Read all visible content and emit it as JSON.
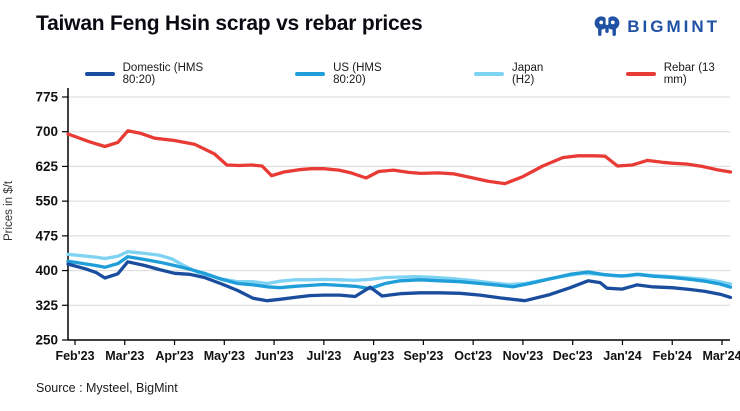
{
  "header": {
    "title": "Taiwan Feng Hsin scrap vs rebar prices",
    "brand": "BIGMINT"
  },
  "source_note": "Source : Mysteel, BigMint",
  "colors": {
    "brand_blue": "#2051a3",
    "axis": "#000000",
    "grid": "#d9d9d9",
    "tick_text": "#111111"
  },
  "chart_data": {
    "type": "line",
    "title": "Taiwan Feng Hsin scrap vs rebar prices",
    "xlabel": "",
    "ylabel": "Prices in $/t",
    "ylim": [
      250,
      775
    ],
    "yticks": [
      250,
      325,
      400,
      475,
      550,
      625,
      700,
      775
    ],
    "grid": "horizontal",
    "legend_position": "top",
    "x_categories": [
      "Feb'23",
      "Mar'23",
      "Apr'23",
      "May'23",
      "Jun'23",
      "Jul'23",
      "Aug'23",
      "Sep'23",
      "Oct'23",
      "Nov'23",
      "Dec'23",
      "Jan'24",
      "Feb'24",
      "Mar'24"
    ],
    "x_unit": "months from Feb'23 (fractional = weekly readings)",
    "series": [
      {
        "name": "Domestic (HMS 80:20)",
        "color": "#1a4d9e",
        "points": [
          [
            -0.14,
            414
          ],
          [
            0.2,
            404
          ],
          [
            0.42,
            396
          ],
          [
            0.6,
            384
          ],
          [
            0.86,
            393
          ],
          [
            1.06,
            419
          ],
          [
            1.4,
            411
          ],
          [
            1.7,
            402
          ],
          [
            2.0,
            394
          ],
          [
            2.3,
            392
          ],
          [
            2.6,
            385
          ],
          [
            2.95,
            371
          ],
          [
            3.27,
            357
          ],
          [
            3.58,
            340
          ],
          [
            3.86,
            335
          ],
          [
            4.12,
            338
          ],
          [
            4.42,
            342
          ],
          [
            4.72,
            346
          ],
          [
            5.0,
            347
          ],
          [
            5.32,
            347
          ],
          [
            5.63,
            344
          ],
          [
            5.93,
            364
          ],
          [
            6.17,
            345
          ],
          [
            6.53,
            350
          ],
          [
            6.93,
            352
          ],
          [
            7.33,
            352
          ],
          [
            7.74,
            351
          ],
          [
            8.14,
            347
          ],
          [
            8.54,
            341
          ],
          [
            9.04,
            335
          ],
          [
            9.54,
            348
          ],
          [
            9.95,
            363
          ],
          [
            10.31,
            378
          ],
          [
            10.55,
            374
          ],
          [
            10.69,
            362
          ],
          [
            10.99,
            360
          ],
          [
            11.29,
            369
          ],
          [
            11.59,
            365
          ],
          [
            12.0,
            363
          ],
          [
            12.36,
            359
          ],
          [
            12.66,
            355
          ],
          [
            12.96,
            349
          ],
          [
            13.17,
            342
          ]
        ]
      },
      {
        "name": "US (HMS 80:20)",
        "color": "#1f9ed9",
        "points": [
          [
            -0.14,
            420
          ],
          [
            0.42,
            411
          ],
          [
            0.6,
            407
          ],
          [
            0.86,
            415
          ],
          [
            1.06,
            430
          ],
          [
            1.4,
            424
          ],
          [
            1.7,
            418
          ],
          [
            2.0,
            411
          ],
          [
            2.3,
            403
          ],
          [
            2.6,
            394
          ],
          [
            2.95,
            381
          ],
          [
            3.27,
            372
          ],
          [
            3.58,
            369
          ],
          [
            3.86,
            365
          ],
          [
            4.12,
            363
          ],
          [
            4.42,
            366
          ],
          [
            4.72,
            368
          ],
          [
            5.0,
            370
          ],
          [
            5.32,
            368
          ],
          [
            5.63,
            366
          ],
          [
            5.93,
            361
          ],
          [
            6.23,
            372
          ],
          [
            6.53,
            378
          ],
          [
            6.93,
            380
          ],
          [
            7.33,
            378
          ],
          [
            7.74,
            376
          ],
          [
            8.14,
            372
          ],
          [
            8.54,
            368
          ],
          [
            8.8,
            365
          ],
          [
            9.14,
            372
          ],
          [
            9.54,
            382
          ],
          [
            9.95,
            392
          ],
          [
            10.31,
            397
          ],
          [
            10.65,
            391
          ],
          [
            10.99,
            388
          ],
          [
            11.29,
            392
          ],
          [
            11.59,
            388
          ],
          [
            12.0,
            385
          ],
          [
            12.36,
            381
          ],
          [
            12.66,
            377
          ],
          [
            12.96,
            371
          ],
          [
            13.17,
            364
          ]
        ]
      },
      {
        "name": "Japan (H2)",
        "color": "#7ed3f2",
        "points": [
          [
            -0.14,
            435
          ],
          [
            0.42,
            429
          ],
          [
            0.6,
            426
          ],
          [
            0.86,
            431
          ],
          [
            1.06,
            441
          ],
          [
            1.4,
            437
          ],
          [
            1.7,
            433
          ],
          [
            1.95,
            425
          ],
          [
            2.2,
            410
          ],
          [
            2.45,
            397
          ],
          [
            2.7,
            389
          ],
          [
            2.95,
            382
          ],
          [
            3.27,
            376
          ],
          [
            3.58,
            376
          ],
          [
            3.86,
            372
          ],
          [
            4.12,
            377
          ],
          [
            4.42,
            380
          ],
          [
            4.72,
            380
          ],
          [
            5.0,
            381
          ],
          [
            5.32,
            380
          ],
          [
            5.63,
            379
          ],
          [
            5.93,
            381
          ],
          [
            6.23,
            385
          ],
          [
            6.53,
            386
          ],
          [
            6.83,
            387
          ],
          [
            7.13,
            386
          ],
          [
            7.53,
            383
          ],
          [
            7.94,
            379
          ],
          [
            8.34,
            374
          ],
          [
            8.7,
            370
          ],
          [
            9.04,
            372
          ],
          [
            9.44,
            380
          ],
          [
            9.84,
            388
          ],
          [
            10.21,
            394
          ],
          [
            10.55,
            392
          ],
          [
            10.85,
            389
          ],
          [
            11.15,
            389
          ],
          [
            11.35,
            392
          ],
          [
            11.65,
            389
          ],
          [
            12.0,
            387
          ],
          [
            12.36,
            384
          ],
          [
            12.66,
            381
          ],
          [
            12.96,
            376
          ],
          [
            13.17,
            371
          ]
        ]
      },
      {
        "name": "Rebar (13 mm)",
        "color": "#e93b35",
        "points": [
          [
            -0.14,
            695
          ],
          [
            0.3,
            678
          ],
          [
            0.6,
            668
          ],
          [
            0.86,
            677
          ],
          [
            1.06,
            702
          ],
          [
            1.3,
            697
          ],
          [
            1.6,
            686
          ],
          [
            2.0,
            681
          ],
          [
            2.4,
            673
          ],
          [
            2.8,
            652
          ],
          [
            3.05,
            628
          ],
          [
            3.3,
            627
          ],
          [
            3.55,
            628
          ],
          [
            3.76,
            626
          ],
          [
            3.95,
            605
          ],
          [
            4.2,
            613
          ],
          [
            4.5,
            618
          ],
          [
            4.75,
            620
          ],
          [
            5.0,
            620
          ],
          [
            5.3,
            617
          ],
          [
            5.55,
            611
          ],
          [
            5.85,
            600
          ],
          [
            6.1,
            614
          ],
          [
            6.4,
            617
          ],
          [
            6.7,
            612
          ],
          [
            6.95,
            610
          ],
          [
            7.3,
            611
          ],
          [
            7.6,
            609
          ],
          [
            8.0,
            600
          ],
          [
            8.3,
            593
          ],
          [
            8.64,
            588
          ],
          [
            9.0,
            603
          ],
          [
            9.4,
            626
          ],
          [
            9.8,
            644
          ],
          [
            10.1,
            648
          ],
          [
            10.45,
            648
          ],
          [
            10.65,
            647
          ],
          [
            10.9,
            626
          ],
          [
            11.2,
            628
          ],
          [
            11.5,
            638
          ],
          [
            11.8,
            634
          ],
          [
            12.0,
            632
          ],
          [
            12.3,
            630
          ],
          [
            12.6,
            625
          ],
          [
            12.9,
            618
          ],
          [
            13.17,
            613
          ]
        ]
      }
    ]
  }
}
